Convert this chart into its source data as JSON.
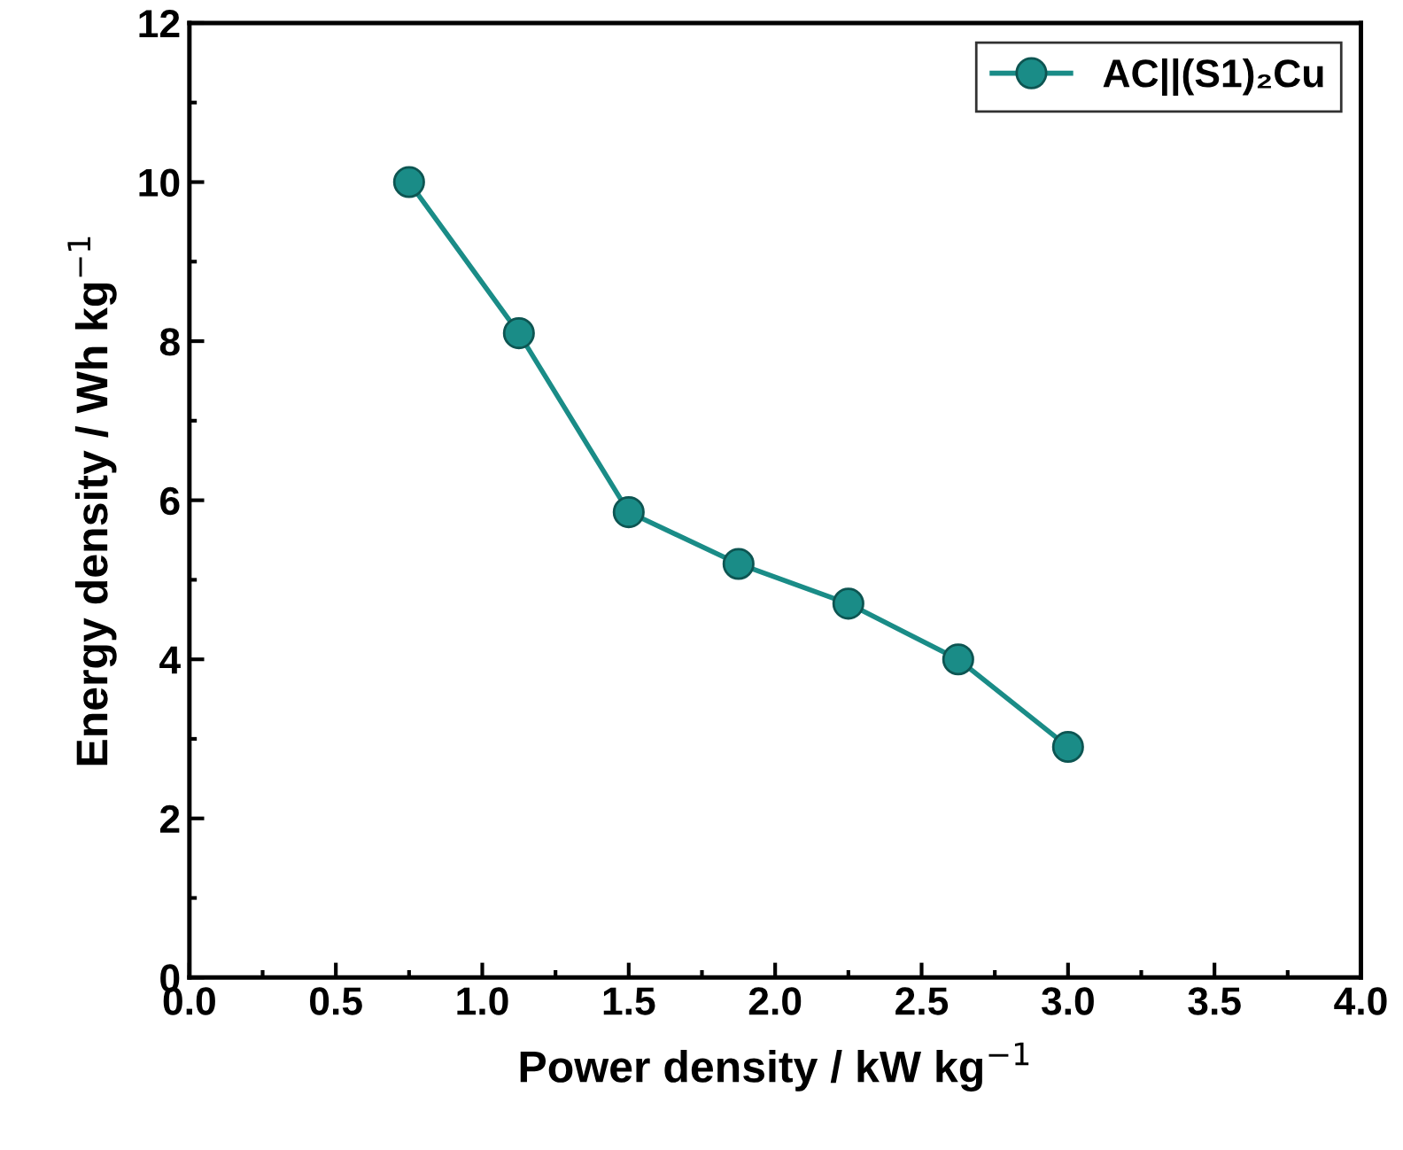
{
  "chart_data": {
    "type": "line",
    "xlabel": "Power density / kW kg$^{−1}$",
    "ylabel": "Energy density / Wh kg$^{−1}$",
    "x": [
      0.75,
      1.125,
      1.5,
      1.875,
      2.25,
      2.625,
      3.0
    ],
    "series": [
      {
        "name": "AC||(S1)₂Cu",
        "color": "#1a8c87",
        "values": [
          10.0,
          8.1,
          5.85,
          5.2,
          4.7,
          4.0,
          2.9
        ]
      }
    ],
    "xlim": [
      0,
      4
    ],
    "xticks": [
      {
        "value": 0,
        "label": "0.0"
      },
      0.5,
      {
        "value": 1,
        "label": "1.0"
      },
      1.5,
      {
        "value": 2,
        "label": "2.0"
      },
      2.5,
      {
        "value": 3,
        "label": "3.0"
      },
      3.5,
      {
        "value": 4,
        "label": "4.0"
      }
    ],
    "ylim": [
      0,
      12
    ],
    "yticks": [
      0,
      2,
      4,
      6,
      8,
      10,
      12
    ],
    "grid": false,
    "legend": "top right",
    "marker": "circle",
    "line_style": "solid"
  }
}
